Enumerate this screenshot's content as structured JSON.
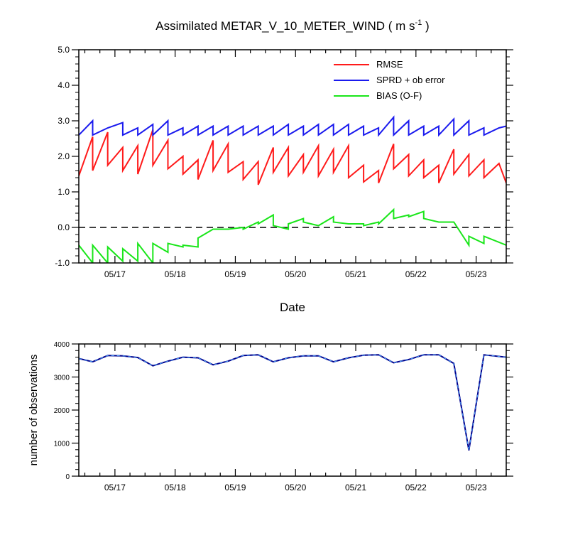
{
  "title_main": "Assimilated METAR_V_10_METER_WIND ( m s",
  "title_sup": "-1",
  "title_end": " )",
  "colors": {
    "rmse": "#ff1a1a",
    "spread": "#1a1aee",
    "bias": "#1ae61a",
    "obs": "#00008b",
    "obs_dash": "#4da6ff"
  },
  "chart_data": [
    {
      "type": "line",
      "title": "Assimilated METAR_V_10_METER_WIND ( m s-1 )",
      "xlabel": "Date",
      "ylabel": "",
      "ylim": [
        -1.0,
        5.0
      ],
      "yticks": [
        "5.0",
        "4.0",
        "3.0",
        "2.0",
        "1.0",
        "0.0",
        "-1.0"
      ],
      "xlim": [
        16.4,
        23.5
      ],
      "xticks": [
        {
          "x": 17,
          "label": "05/17"
        },
        {
          "x": 18,
          "label": "05/18"
        },
        {
          "x": 19,
          "label": "05/19"
        },
        {
          "x": 20,
          "label": "05/20"
        },
        {
          "x": 21,
          "label": "05/21"
        },
        {
          "x": 22,
          "label": "05/22"
        },
        {
          "x": 23,
          "label": "05/23"
        }
      ],
      "zero_line": true,
      "legend": "top-right",
      "series": [
        {
          "name": "RMSE",
          "color_key": "rmse",
          "points": [
            [
              16.4,
              1.45
            ],
            [
              16.63,
              2.55
            ],
            [
              16.63,
              1.6
            ],
            [
              16.88,
              2.68
            ],
            [
              16.88,
              1.75
            ],
            [
              17.13,
              2.25
            ],
            [
              17.13,
              1.6
            ],
            [
              17.38,
              2.3
            ],
            [
              17.38,
              1.5
            ],
            [
              17.63,
              2.75
            ],
            [
              17.63,
              1.75
            ],
            [
              17.88,
              2.45
            ],
            [
              17.88,
              1.65
            ],
            [
              18.13,
              2.0
            ],
            [
              18.13,
              1.5
            ],
            [
              18.38,
              1.9
            ],
            [
              18.38,
              1.35
            ],
            [
              18.63,
              2.45
            ],
            [
              18.63,
              1.6
            ],
            [
              18.88,
              2.35
            ],
            [
              18.88,
              1.55
            ],
            [
              19.13,
              1.85
            ],
            [
              19.13,
              1.35
            ],
            [
              19.38,
              1.85
            ],
            [
              19.38,
              1.2
            ],
            [
              19.63,
              2.25
            ],
            [
              19.63,
              1.55
            ],
            [
              19.88,
              2.25
            ],
            [
              19.88,
              1.45
            ],
            [
              20.13,
              2.05
            ],
            [
              20.13,
              1.55
            ],
            [
              20.38,
              2.3
            ],
            [
              20.38,
              1.45
            ],
            [
              20.63,
              2.2
            ],
            [
              20.63,
              1.55
            ],
            [
              20.88,
              2.3
            ],
            [
              20.88,
              1.4
            ],
            [
              21.13,
              1.75
            ],
            [
              21.13,
              1.28
            ],
            [
              21.38,
              1.6
            ],
            [
              21.38,
              1.25
            ],
            [
              21.63,
              2.35
            ],
            [
              21.63,
              1.65
            ],
            [
              21.88,
              2.05
            ],
            [
              21.88,
              1.45
            ],
            [
              22.13,
              1.9
            ],
            [
              22.13,
              1.4
            ],
            [
              22.38,
              1.75
            ],
            [
              22.38,
              1.25
            ],
            [
              22.63,
              2.2
            ],
            [
              22.63,
              1.5
            ],
            [
              22.88,
              2.05
            ],
            [
              22.88,
              1.45
            ],
            [
              23.13,
              1.9
            ],
            [
              23.13,
              1.4
            ],
            [
              23.38,
              1.8
            ],
            [
              23.5,
              1.25
            ]
          ]
        },
        {
          "name": "SPRD + ob error",
          "color_key": "spread",
          "points": [
            [
              16.4,
              2.6
            ],
            [
              16.63,
              3.0
            ],
            [
              16.63,
              2.6
            ],
            [
              16.88,
              2.8
            ],
            [
              17.13,
              2.95
            ],
            [
              17.13,
              2.6
            ],
            [
              17.38,
              2.8
            ],
            [
              17.38,
              2.6
            ],
            [
              17.63,
              2.9
            ],
            [
              17.63,
              2.6
            ],
            [
              17.88,
              3.0
            ],
            [
              17.88,
              2.6
            ],
            [
              18.13,
              2.8
            ],
            [
              18.13,
              2.6
            ],
            [
              18.38,
              2.85
            ],
            [
              18.38,
              2.6
            ],
            [
              18.63,
              2.85
            ],
            [
              18.63,
              2.6
            ],
            [
              18.88,
              2.85
            ],
            [
              18.88,
              2.6
            ],
            [
              19.13,
              2.85
            ],
            [
              19.13,
              2.6
            ],
            [
              19.38,
              2.85
            ],
            [
              19.38,
              2.6
            ],
            [
              19.63,
              2.85
            ],
            [
              19.63,
              2.6
            ],
            [
              19.88,
              2.9
            ],
            [
              19.88,
              2.6
            ],
            [
              20.13,
              2.85
            ],
            [
              20.13,
              2.6
            ],
            [
              20.38,
              2.9
            ],
            [
              20.38,
              2.6
            ],
            [
              20.63,
              2.9
            ],
            [
              20.63,
              2.6
            ],
            [
              20.88,
              2.9
            ],
            [
              20.88,
              2.6
            ],
            [
              21.13,
              2.85
            ],
            [
              21.13,
              2.6
            ],
            [
              21.38,
              2.8
            ],
            [
              21.38,
              2.6
            ],
            [
              21.63,
              3.1
            ],
            [
              21.63,
              2.6
            ],
            [
              21.88,
              3.0
            ],
            [
              21.88,
              2.6
            ],
            [
              22.13,
              2.85
            ],
            [
              22.13,
              2.6
            ],
            [
              22.38,
              2.85
            ],
            [
              22.38,
              2.6
            ],
            [
              22.63,
              3.05
            ],
            [
              22.63,
              2.6
            ],
            [
              22.88,
              3.0
            ],
            [
              22.88,
              2.6
            ],
            [
              23.13,
              2.8
            ],
            [
              23.13,
              2.6
            ],
            [
              23.38,
              2.8
            ],
            [
              23.5,
              2.85
            ]
          ]
        },
        {
          "name": "BIAS (O-F)",
          "color_key": "bias",
          "points": [
            [
              16.4,
              -0.5
            ],
            [
              16.63,
              -1.0
            ],
            [
              16.63,
              -0.5
            ],
            [
              16.88,
              -1.0
            ],
            [
              16.88,
              -0.55
            ],
            [
              17.13,
              -0.95
            ],
            [
              17.13,
              -0.6
            ],
            [
              17.38,
              -0.95
            ],
            [
              17.38,
              -0.45
            ],
            [
              17.63,
              -1.0
            ],
            [
              17.63,
              -0.45
            ],
            [
              17.88,
              -0.7
            ],
            [
              17.88,
              -0.45
            ],
            [
              18.13,
              -0.55
            ],
            [
              18.13,
              -0.5
            ],
            [
              18.38,
              -0.55
            ],
            [
              18.38,
              -0.3
            ],
            [
              18.63,
              -0.05
            ],
            [
              18.88,
              -0.05
            ],
            [
              19.13,
              0.0
            ],
            [
              19.13,
              -0.05
            ],
            [
              19.38,
              0.15
            ],
            [
              19.38,
              0.1
            ],
            [
              19.63,
              0.35
            ],
            [
              19.63,
              0.05
            ],
            [
              19.88,
              -0.05
            ],
            [
              19.88,
              0.1
            ],
            [
              20.13,
              0.25
            ],
            [
              20.13,
              0.15
            ],
            [
              20.38,
              0.05
            ],
            [
              20.63,
              0.3
            ],
            [
              20.63,
              0.15
            ],
            [
              20.88,
              0.1
            ],
            [
              21.13,
              0.1
            ],
            [
              21.13,
              0.05
            ],
            [
              21.38,
              0.15
            ],
            [
              21.38,
              0.1
            ],
            [
              21.63,
              0.5
            ],
            [
              21.63,
              0.25
            ],
            [
              21.88,
              0.35
            ],
            [
              21.88,
              0.3
            ],
            [
              22.13,
              0.45
            ],
            [
              22.13,
              0.25
            ],
            [
              22.38,
              0.15
            ],
            [
              22.63,
              0.15
            ],
            [
              22.88,
              -0.5
            ],
            [
              22.88,
              -0.25
            ],
            [
              23.13,
              -0.45
            ],
            [
              23.13,
              -0.25
            ],
            [
              23.5,
              -0.5
            ]
          ]
        }
      ]
    },
    {
      "type": "line",
      "title": "",
      "xlabel": "",
      "ylabel": "number of observations",
      "ylim": [
        0,
        4000
      ],
      "yticks": [
        "4000",
        "3000",
        "2000",
        "1000",
        "0"
      ],
      "xlim": [
        16.4,
        23.5
      ],
      "xticks": [
        {
          "x": 17,
          "label": "05/17"
        },
        {
          "x": 18,
          "label": "05/18"
        },
        {
          "x": 19,
          "label": "05/19"
        },
        {
          "x": 20,
          "label": "05/20"
        },
        {
          "x": 21,
          "label": "05/21"
        },
        {
          "x": 22,
          "label": "05/22"
        },
        {
          "x": 23,
          "label": "05/23"
        }
      ],
      "series": [
        {
          "color_key": "obs",
          "points": [
            [
              16.4,
              3560
            ],
            [
              16.63,
              3460
            ],
            [
              16.88,
              3650
            ],
            [
              17.13,
              3640
            ],
            [
              17.38,
              3590
            ],
            [
              17.63,
              3340
            ],
            [
              17.88,
              3480
            ],
            [
              18.13,
              3600
            ],
            [
              18.38,
              3580
            ],
            [
              18.63,
              3370
            ],
            [
              18.88,
              3480
            ],
            [
              19.13,
              3650
            ],
            [
              19.38,
              3670
            ],
            [
              19.63,
              3460
            ],
            [
              19.88,
              3580
            ],
            [
              20.13,
              3640
            ],
            [
              20.38,
              3640
            ],
            [
              20.63,
              3460
            ],
            [
              20.88,
              3580
            ],
            [
              21.13,
              3660
            ],
            [
              21.38,
              3670
            ],
            [
              21.63,
              3430
            ],
            [
              21.88,
              3530
            ],
            [
              22.13,
              3670
            ],
            [
              22.38,
              3670
            ],
            [
              22.63,
              3410
            ],
            [
              22.88,
              780
            ],
            [
              23.13,
              3670
            ],
            [
              23.5,
              3600
            ]
          ]
        }
      ]
    }
  ]
}
